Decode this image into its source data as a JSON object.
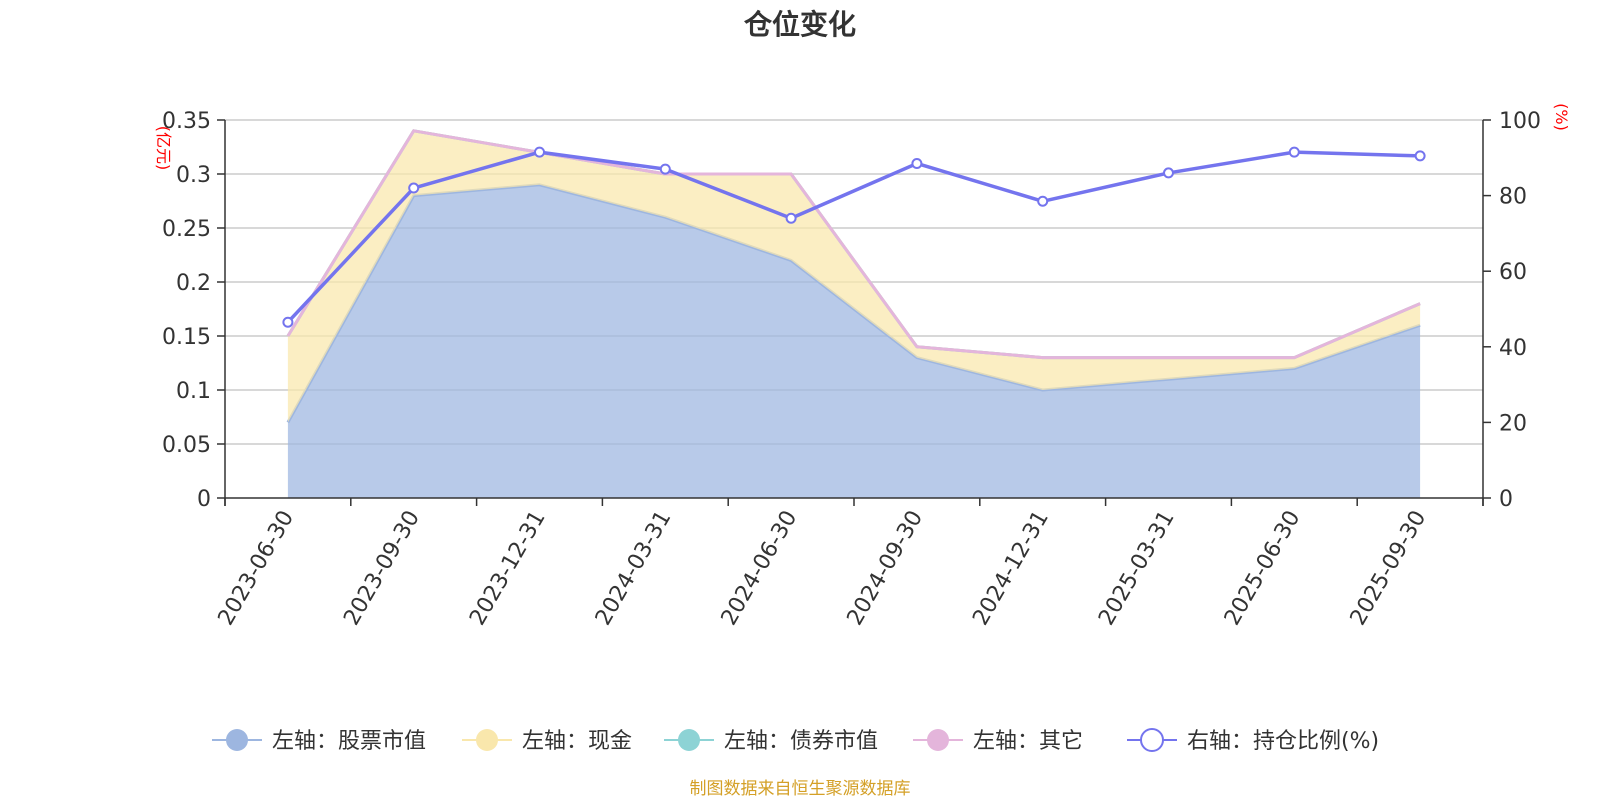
{
  "chart_data": {
    "type": "area",
    "title": "仓位变化",
    "categories": [
      "2023-06-30",
      "2023-09-30",
      "2023-12-31",
      "2024-03-31",
      "2024-06-30",
      "2024-09-30",
      "2024-12-31",
      "2025-03-31",
      "2025-06-30",
      "2025-09-30"
    ],
    "left_axis": {
      "unit": "(亿元)",
      "ylim": [
        0,
        0.35
      ],
      "ticks": [
        "0",
        "0.05",
        "0.1",
        "0.15",
        "0.2",
        "0.25",
        "0.3",
        "0.35"
      ]
    },
    "right_axis": {
      "unit": "(%)",
      "ylim": [
        0,
        100
      ],
      "ticks": [
        "0",
        "20",
        "40",
        "60",
        "80",
        "100"
      ]
    },
    "series": [
      {
        "name": "左轴：股票市值",
        "axis": "left",
        "kind": "area",
        "color": "#9db6e0",
        "values": [
          0.07,
          0.28,
          0.29,
          0.26,
          0.22,
          0.13,
          0.1,
          0.11,
          0.12,
          0.16
        ]
      },
      {
        "name": "左轴：现金",
        "axis": "left",
        "kind": "area",
        "color": "#f9e7ac",
        "values": [
          0.08,
          0.06,
          0.03,
          0.04,
          0.08,
          0.01,
          0.03,
          0.02,
          0.01,
          0.02
        ]
      },
      {
        "name": "左轴：债券市值",
        "axis": "left",
        "kind": "area",
        "color": "#8dd3d5",
        "values": [
          0,
          0,
          0,
          0,
          0,
          0,
          0,
          0,
          0,
          0
        ]
      },
      {
        "name": "左轴：其它",
        "axis": "left",
        "kind": "area",
        "color": "#e4b5db",
        "values": [
          0,
          0,
          0,
          0,
          0,
          0,
          0,
          0,
          0,
          0
        ]
      },
      {
        "name": "右轴：持仓比例(%)",
        "axis": "right",
        "kind": "line",
        "color": "#7474ee",
        "values": [
          46.5,
          82,
          91.5,
          87,
          74,
          88.5,
          78.5,
          86,
          91.5,
          90.5
        ]
      }
    ],
    "legend_position": "bottom"
  },
  "source": "制图数据来自恒生聚源数据库",
  "colors": {
    "axis_unit": "#ff0000",
    "source": "#d4a027",
    "grid": "#cccccc",
    "axis": "#333333"
  }
}
